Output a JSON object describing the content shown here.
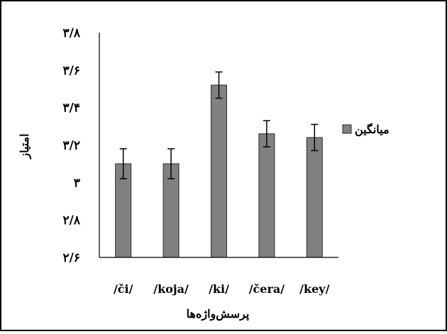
{
  "chart_data": {
    "type": "bar",
    "categories": [
      "/či/",
      "/koja/",
      "/ki/",
      "/čera/",
      "/key/"
    ],
    "series": [
      {
        "name": "میانگین",
        "values": [
          3.1,
          3.1,
          3.52,
          3.26,
          3.24
        ],
        "error": [
          0.08,
          0.08,
          0.07,
          0.07,
          0.07
        ]
      }
    ],
    "ylim": [
      2.6,
      3.8
    ],
    "yticks": [
      2.6,
      2.8,
      3.0,
      3.2,
      3.4,
      3.6,
      3.8
    ],
    "ytick_labels": [
      "۲/۶",
      "۲/۸",
      "۳",
      "۳/۲",
      "۳/۴",
      "۳/۶",
      "۳/۸"
    ],
    "xlabel": "پرسش‌واژه‌ها",
    "ylabel": "امتیاز",
    "grid": false,
    "legend_position": "right",
    "colors": {
      "bar": "#808080",
      "bar_stroke": "#2b2b2b",
      "axis": "#000000",
      "error": "#000000"
    }
  }
}
